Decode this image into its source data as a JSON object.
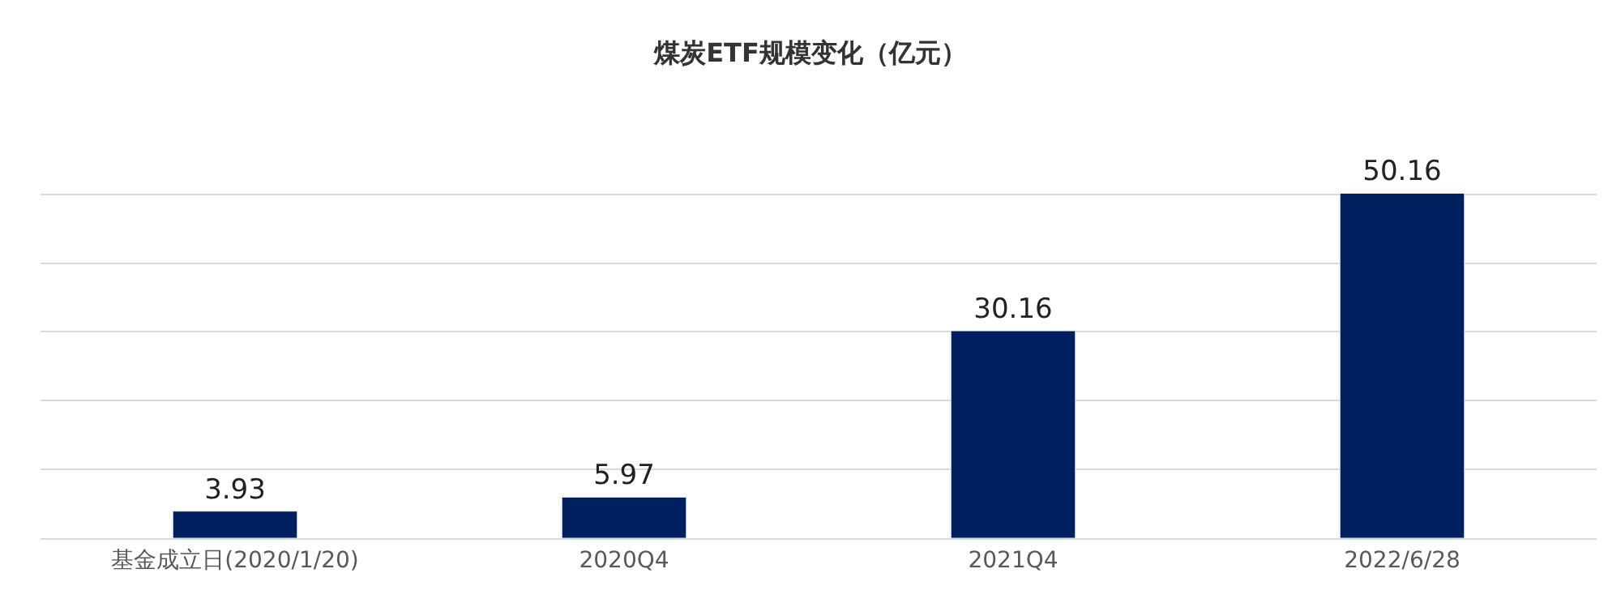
{
  "chart_data": {
    "type": "bar",
    "title": "煤炭ETF规模变化（亿元）",
    "categories": [
      "基金成立日(2020/1/20)",
      "2020Q4",
      "2021Q4",
      "2022/6/28"
    ],
    "values": [
      3.93,
      5.97,
      30.16,
      50.16
    ],
    "color": "#002060",
    "grid": "y",
    "tick_labels": "x",
    "data_labels": true
  }
}
